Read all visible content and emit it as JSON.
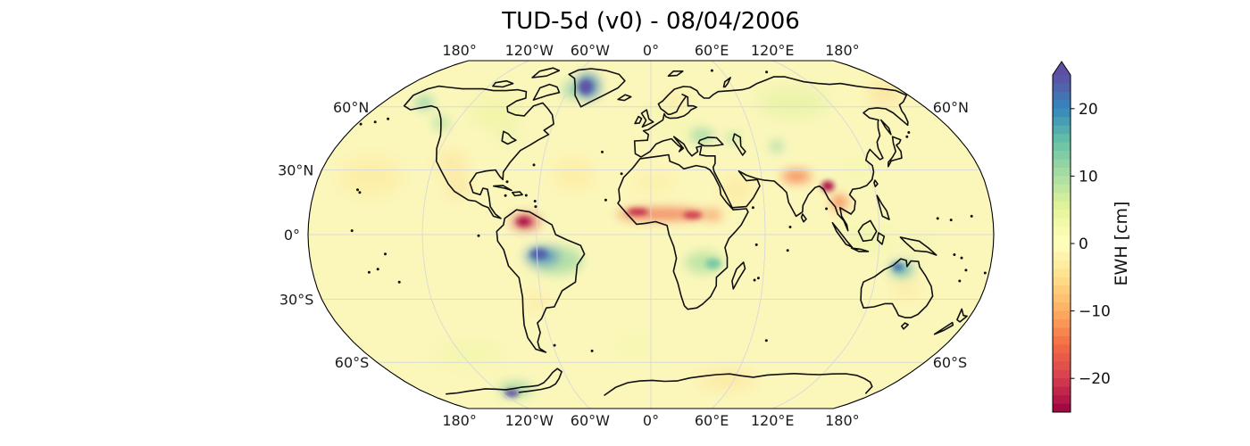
{
  "title": "TUD-5d (v0) - 08/04/2006",
  "map": {
    "projection": "Robinson",
    "top_lon_labels": [
      {
        "text": "180°",
        "lon": -180
      },
      {
        "text": "120°W",
        "lon": -120
      },
      {
        "text": "60°W",
        "lon": -60
      },
      {
        "text": "0°",
        "lon": 0
      },
      {
        "text": "60°E",
        "lon": 60
      },
      {
        "text": "120°E",
        "lon": 120
      },
      {
        "text": "180°",
        "lon": 180
      }
    ],
    "bottom_lon_labels": [
      {
        "text": "180°",
        "lon": -180
      },
      {
        "text": "120°W",
        "lon": -120
      },
      {
        "text": "60°W",
        "lon": -60
      },
      {
        "text": "0°",
        "lon": 0
      },
      {
        "text": "60°E",
        "lon": 60
      },
      {
        "text": "120°E",
        "lon": 120
      },
      {
        "text": "180°",
        "lon": 180
      }
    ],
    "left_lat_labels": [
      {
        "text": "60°N",
        "lat": 60
      },
      {
        "text": "30°N",
        "lat": 30
      },
      {
        "text": "0°",
        "lat": 0
      },
      {
        "text": "30°S",
        "lat": -30
      },
      {
        "text": "60°S",
        "lat": -60
      }
    ],
    "right_lat_labels": [
      {
        "text": "60°N",
        "lat": 60
      },
      {
        "text": "60°S",
        "lat": -60
      }
    ]
  },
  "colorbar": {
    "label": "EWH [cm]",
    "vmin": -25,
    "vmax": 25,
    "bins": 40,
    "extend": "max",
    "colormap": "Spectral",
    "stops": [
      "#9e0142",
      "#d53e4f",
      "#f46d43",
      "#fdae61",
      "#fee08b",
      "#ffffbf",
      "#e6f598",
      "#abdda4",
      "#66c2a5",
      "#3288bd",
      "#5e4fa2"
    ],
    "ticks": [
      {
        "value": 20,
        "text": "20"
      },
      {
        "value": 10,
        "text": "10"
      },
      {
        "value": 0,
        "text": "0"
      },
      {
        "value": -10,
        "text": "−10"
      },
      {
        "value": -20,
        "text": "−20"
      }
    ]
  },
  "chart_data": {
    "type": "heatmap",
    "subtype": "global_geospatial_field",
    "title": "TUD-5d (v0) - 08/04/2006",
    "product": "TUD-5d (v0)",
    "date": "08/04/2006",
    "variable": "Equivalent Water Height",
    "units": "cm",
    "projection": "Robinson",
    "colormap": "Spectral",
    "vmin": -25,
    "vmax": 25,
    "colorbar_extend": "max",
    "background_field_cm": 0,
    "gridlines": {
      "parallels": [
        -60,
        -30,
        0,
        30,
        60
      ],
      "meridians": [
        -180,
        -120,
        -60,
        0,
        60,
        120,
        180
      ]
    },
    "anomalies": [
      {
        "region": "greenland",
        "lon": -47,
        "lat": 71,
        "ewh_cm": 21,
        "ext_lon": 9,
        "ext_lat": 6,
        "layer": "main"
      },
      {
        "region": "greenland-core",
        "lon": -48,
        "lat": 70.5,
        "ewh_cm": 27,
        "ext_lon": 5,
        "ext_lat": 3.5,
        "layer": "core"
      },
      {
        "region": "baffin-bay",
        "lon": -58,
        "lat": 69,
        "ewh_cm": 12,
        "ext_lon": 5,
        "ext_lat": 4,
        "layer": "main"
      },
      {
        "region": "alaska",
        "lon": -152,
        "lat": 62,
        "ewh_cm": 13,
        "ext_lon": 6,
        "ext_lat": 3,
        "layer": "main"
      },
      {
        "region": "british-columbia-coast",
        "lon": -129,
        "lat": 52,
        "ewh_cm": 10,
        "ext_lon": 4.5,
        "ext_lat": 3.5,
        "layer": "main"
      },
      {
        "region": "canada-interior",
        "lon": -100,
        "lat": 57,
        "ewh_cm": 5,
        "ext_lon": 16,
        "ext_lat": 7,
        "layer": "tint"
      },
      {
        "region": "great-lakes-region",
        "lon": -85,
        "lat": 46,
        "ewh_cm": 7,
        "ext_lon": 6,
        "ext_lat": 3,
        "layer": "tint"
      },
      {
        "region": "us-southwest",
        "lon": -110,
        "lat": 33,
        "ewh_cm": -6,
        "ext_lon": 8,
        "ext_lat": 5,
        "layer": "tint"
      },
      {
        "region": "mexico",
        "lon": -103,
        "lat": 22,
        "ewh_cm": -9,
        "ext_lon": 5,
        "ext_lat": 3.5,
        "layer": "tint"
      },
      {
        "region": "venezuela",
        "lon": -66,
        "lat": 6,
        "ewh_cm": -21,
        "ext_lon": 7,
        "ext_lat": 3.5,
        "layer": "main"
      },
      {
        "region": "venezuela-core",
        "lon": -67,
        "lat": 6,
        "ewh_cm": -24,
        "ext_lon": 3.5,
        "ext_lat": 2,
        "layer": "core"
      },
      {
        "region": "amazon-ring",
        "lon": -50,
        "lat": -12,
        "ewh_cm": 10,
        "ext_lon": 14,
        "ext_lat": 7,
        "layer": "main"
      },
      {
        "region": "amazon-south",
        "lon": -57,
        "lat": -10,
        "ewh_cm": 20,
        "ext_lon": 9,
        "ext_lat": 4.5,
        "layer": "main"
      },
      {
        "region": "amazon-core",
        "lon": -59,
        "lat": -9,
        "ewh_cm": 24,
        "ext_lon": 4.5,
        "ext_lat": 2.5,
        "layer": "core"
      },
      {
        "region": "argentina",
        "lon": -63,
        "lat": -31,
        "ewh_cm": -6,
        "ext_lon": 5,
        "ext_lat": 4,
        "layer": "tint"
      },
      {
        "region": "sahel-band",
        "lon": 6,
        "lat": 9.5,
        "ewh_cm": -16,
        "ext_lon": 24,
        "ext_lat": 2.6,
        "layer": "main"
      },
      {
        "region": "sahel-west-core",
        "lon": -7,
        "lat": 10.5,
        "ewh_cm": -22,
        "ext_lon": 5.5,
        "ext_lat": 1.8,
        "layer": "core"
      },
      {
        "region": "sahel-east-core",
        "lon": 22,
        "lat": 9,
        "ewh_cm": -21,
        "ext_lon": 5,
        "ext_lat": 1.8,
        "layer": "core"
      },
      {
        "region": "ethiopia",
        "lon": 33,
        "lat": 9,
        "ewh_cm": -14,
        "ext_lon": 4,
        "ext_lat": 2.2,
        "layer": "main"
      },
      {
        "region": "sahara-north",
        "lon": 2,
        "lat": 24,
        "ewh_cm": -4,
        "ext_lon": 13,
        "ext_lat": 4,
        "layer": "tint"
      },
      {
        "region": "southern-africa",
        "lon": 28,
        "lat": -13,
        "ewh_cm": 9,
        "ext_lon": 10,
        "ext_lat": 5.5,
        "layer": "main"
      },
      {
        "region": "southern-africa-core",
        "lon": 33,
        "lat": -13.5,
        "ewh_cm": 14,
        "ext_lon": 4,
        "ext_lat": 2.5,
        "layer": "core"
      },
      {
        "region": "uk",
        "lon": -3,
        "lat": 54,
        "ewh_cm": 6,
        "ext_lon": 3,
        "ext_lat": 2.5,
        "layer": "tint"
      },
      {
        "region": "scandinavia",
        "lon": 17,
        "lat": 62,
        "ewh_cm": -7,
        "ext_lon": 6,
        "ext_lat": 3,
        "layer": "tint"
      },
      {
        "region": "central-europe",
        "lon": 15,
        "lat": 50,
        "ewh_cm": 4,
        "ext_lon": 9,
        "ext_lat": 4,
        "layer": "tint"
      },
      {
        "region": "eastern-europe",
        "lon": 30,
        "lat": 46,
        "ewh_cm": 11,
        "ext_lon": 7,
        "ext_lat": 3.5,
        "layer": "main"
      },
      {
        "region": "caspian-north",
        "lon": 48,
        "lat": 45,
        "ewh_cm": 10,
        "ext_lon": 4,
        "ext_lat": 2.5,
        "layer": "main"
      },
      {
        "region": "siberia",
        "lon": 95,
        "lat": 62,
        "ewh_cm": 6,
        "ext_lon": 24,
        "ext_lat": 7,
        "layer": "tint"
      },
      {
        "region": "ne-siberia",
        "lon": 165,
        "lat": 67,
        "ewh_cm": -8,
        "ext_lon": 11,
        "ext_lat": 4,
        "layer": "tint"
      },
      {
        "region": "tien-shan",
        "lon": 72,
        "lat": 41,
        "ewh_cm": 12,
        "ext_lon": 3.5,
        "ext_lat": 2.5,
        "layer": "main"
      },
      {
        "region": "arabia",
        "lon": 46,
        "lat": 21,
        "ewh_cm": -5,
        "ext_lon": 9,
        "ext_lat": 6,
        "layer": "tint"
      },
      {
        "region": "north-india",
        "lon": 79,
        "lat": 27,
        "ewh_cm": -15,
        "ext_lon": 8,
        "ext_lat": 2.8,
        "layer": "main"
      },
      {
        "region": "myanmar-core",
        "lon": 95,
        "lat": 22.5,
        "ewh_cm": -24,
        "ext_lon": 3.5,
        "ext_lat": 2.6,
        "layer": "core"
      },
      {
        "region": "indochina",
        "lon": 100,
        "lat": 15,
        "ewh_cm": -15,
        "ext_lon": 4,
        "ext_lat": 3.5,
        "layer": "main"
      },
      {
        "region": "east-china",
        "lon": 112,
        "lat": 30,
        "ewh_cm": 4,
        "ext_lon": 8,
        "ext_lat": 5,
        "layer": "tint"
      },
      {
        "region": "maritime-continent",
        "lon": 115,
        "lat": -2,
        "ewh_cm": 5,
        "ext_lon": 12,
        "ext_lat": 5,
        "layer": "tint"
      },
      {
        "region": "new-guinea",
        "lon": 141,
        "lat": -5,
        "ewh_cm": 7,
        "ext_lon": 5,
        "ext_lat": 2.5,
        "layer": "tint"
      },
      {
        "region": "australia-north",
        "lon": 133,
        "lat": -16,
        "ewh_cm": 17,
        "ext_lon": 6,
        "ext_lat": 3.5,
        "layer": "main"
      },
      {
        "region": "australia-north-core",
        "lon": 131,
        "lat": -15,
        "ewh_cm": 22,
        "ext_lon": 3,
        "ext_lat": 2,
        "layer": "core"
      },
      {
        "region": "australia-interior",
        "lon": 137,
        "lat": -25,
        "ewh_cm": -6,
        "ext_lon": 6,
        "ext_lat": 4,
        "layer": "tint"
      },
      {
        "region": "north-pacific",
        "lon": -152,
        "lat": 27,
        "ewh_cm": -4,
        "ext_lon": 17,
        "ext_lat": 9,
        "layer": "tint"
      },
      {
        "region": "north-atlantic",
        "lon": -42,
        "lat": 28,
        "ewh_cm": -4,
        "ext_lon": 12,
        "ext_lat": 8,
        "layer": "tint"
      },
      {
        "region": "southern-ocean-pacific",
        "lon": -115,
        "lat": -56,
        "ewh_cm": 4,
        "ext_lon": 22,
        "ext_lat": 5,
        "layer": "tint"
      },
      {
        "region": "southern-ocean-atlantic",
        "lon": -10,
        "lat": -52,
        "ewh_cm": 3,
        "ext_lon": 15,
        "ext_lat": 4,
        "layer": "tint"
      },
      {
        "region": "east-antarctica",
        "lon": 55,
        "lat": -69,
        "ewh_cm": -7,
        "ext_lon": 22,
        "ext_lat": 3,
        "layer": "tint"
      },
      {
        "region": "west-antarctica-ring",
        "lon": -105,
        "lat": -74.5,
        "ewh_cm": 11,
        "ext_lon": 13,
        "ext_lat": 3.5,
        "layer": "main"
      },
      {
        "region": "west-antarctica-core",
        "lon": -112,
        "lat": -77,
        "ewh_cm": 25,
        "ext_lon": 6,
        "ext_lat": 2,
        "layer": "core"
      }
    ]
  }
}
